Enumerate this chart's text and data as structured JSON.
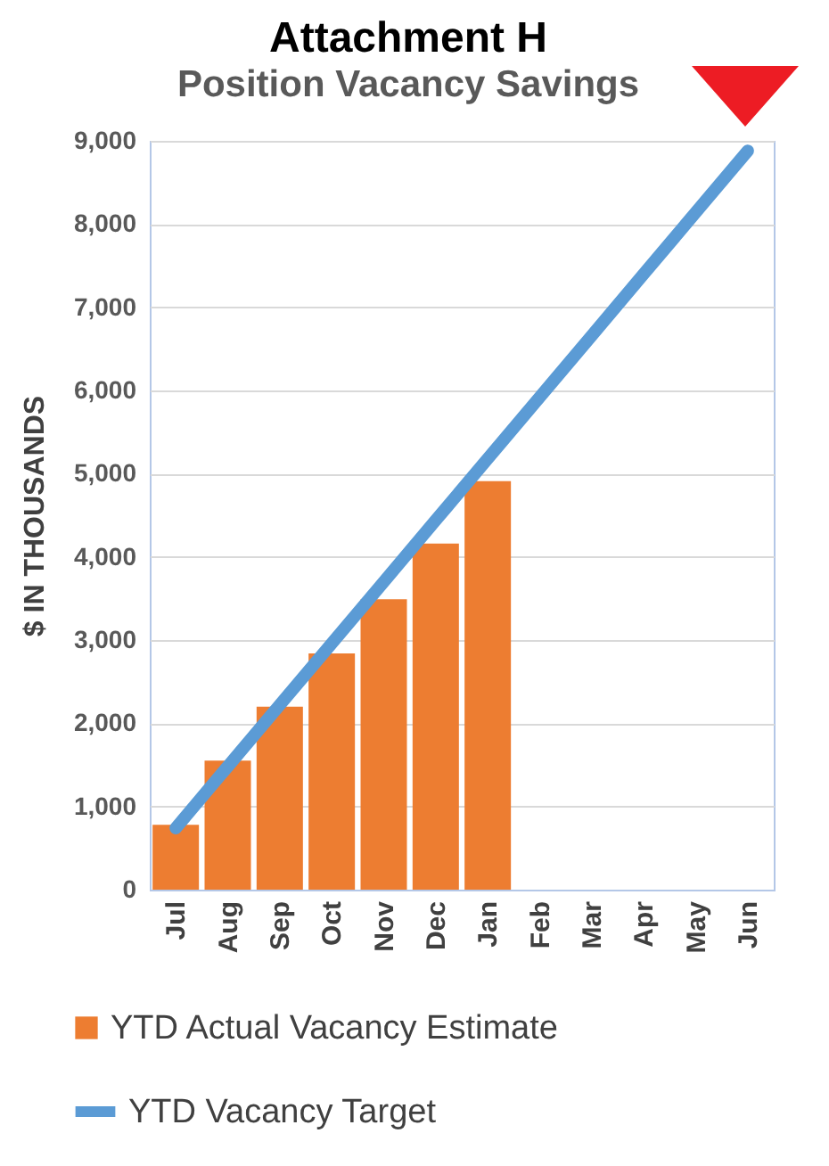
{
  "chart_data": {
    "type": "bar",
    "title": "Attachment H",
    "subtitle": "Position Vacancy Savings",
    "ylabel": "$ IN THOUSANDS",
    "categories": [
      "Jul",
      "Aug",
      "Sep",
      "Oct",
      "Nov",
      "Dec",
      "Jan",
      "Feb",
      "Mar",
      "Apr",
      "May",
      "Jun"
    ],
    "series": [
      {
        "name": "YTD Actual Vacancy Estimate",
        "color": "#ed7d31",
        "values": [
          780,
          1550,
          2200,
          2840,
          3490,
          4160,
          4910,
          null,
          null,
          null,
          null,
          null
        ]
      },
      {
        "name": "YTD Vacancy Target",
        "type": "line",
        "color": "#5b9bd5",
        "values": [
          740,
          1480,
          2220,
          2960,
          3700,
          4440,
          5180,
          5920,
          6660,
          7400,
          8140,
          8880
        ]
      }
    ],
    "ylim": [
      0,
      9000
    ],
    "yticks": [
      0,
      {
        "value": 1000,
        "label": "1,000"
      },
      {
        "value": 2000,
        "label": "2,000"
      },
      {
        "value": 3000,
        "label": "3,000"
      },
      {
        "value": 4000,
        "label": "4,000"
      },
      {
        "value": 5000,
        "label": "5,000"
      },
      {
        "value": 6000,
        "label": "6,000"
      },
      {
        "value": 7000,
        "label": "7,000"
      },
      {
        "value": 8000,
        "label": "8,000"
      },
      {
        "value": 9000,
        "label": "9,000"
      }
    ],
    "grid": "y",
    "legend": "bottom"
  }
}
